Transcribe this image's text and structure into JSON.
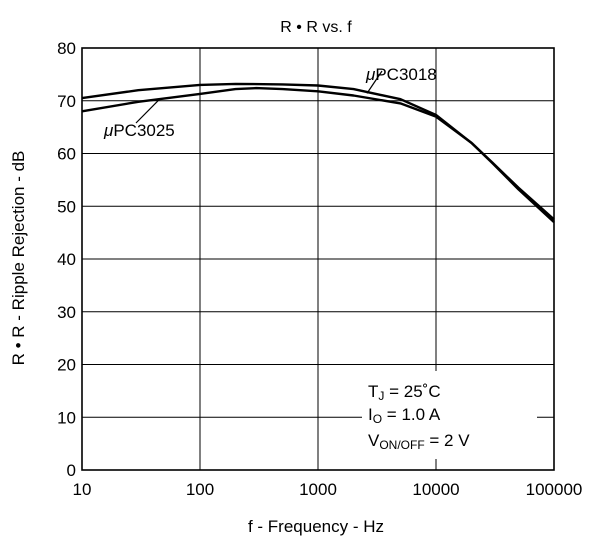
{
  "chart_data": {
    "type": "line",
    "title": "R • R vs. f",
    "xlabel": "f - Frequency - Hz",
    "ylabel": "R • R - Ripple Rejection - dB",
    "x_scale": "log",
    "xlim": [
      10,
      100000
    ],
    "ylim": [
      0,
      80
    ],
    "x_ticks": [
      "10",
      "100",
      "1000",
      "10000",
      "100000"
    ],
    "y_ticks": [
      "0",
      "10",
      "20",
      "30",
      "40",
      "50",
      "60",
      "70",
      "80"
    ],
    "grid": true,
    "series": [
      {
        "name": "μPC3018",
        "x": [
          10,
          30,
          100,
          200,
          500,
          1000,
          2000,
          5000,
          10000,
          20000,
          30000,
          50000,
          100000
        ],
        "y": [
          70.5,
          72.0,
          73.0,
          73.2,
          73.1,
          72.9,
          72.2,
          70.3,
          67.3,
          62.0,
          58.2,
          53.2,
          47.0
        ]
      },
      {
        "name": "μPC3025",
        "x": [
          10,
          30,
          100,
          200,
          300,
          500,
          1000,
          2000,
          5000,
          10000,
          20000,
          30000,
          50000,
          100000
        ],
        "y": [
          68.0,
          69.8,
          71.3,
          72.2,
          72.4,
          72.2,
          71.8,
          71.0,
          69.5,
          67.0,
          62.0,
          58.3,
          53.5,
          47.5
        ]
      }
    ],
    "annotations": [
      {
        "text_parts": [
          "μ",
          "PC3018"
        ],
        "target_series": "μPC3018"
      },
      {
        "text_parts": [
          "μ",
          "PC3025"
        ],
        "target_series": "μPC3025"
      }
    ],
    "conditions": [
      {
        "symbol": "T",
        "subscript": "J",
        "rest": " = 25˚C"
      },
      {
        "symbol": "I",
        "subscript": "O",
        "rest": " = 1.0 A"
      },
      {
        "symbol": "V",
        "subscript": "ON/OFF",
        "rest": " = 2 V"
      }
    ]
  }
}
